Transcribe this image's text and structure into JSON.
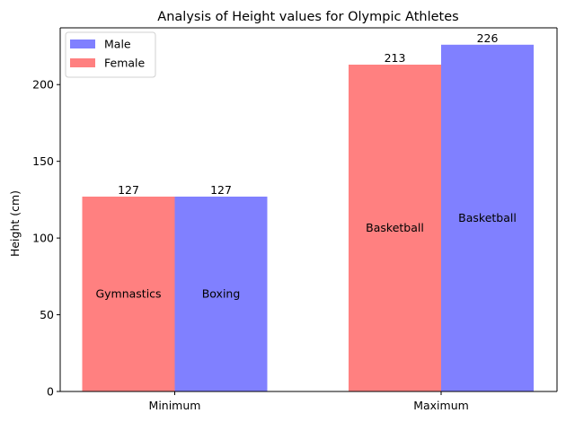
{
  "chart_data": {
    "type": "bar",
    "title": "Analysis of Height values for Olympic Athletes",
    "xlabel": "",
    "ylabel": "Height (cm)",
    "categories": [
      "Minimum",
      "Maximum"
    ],
    "ylim": [
      0,
      237
    ],
    "yticks": [
      0,
      50,
      100,
      150,
      200
    ],
    "grid": false,
    "legend": {
      "placement": "top-left"
    },
    "series": [
      {
        "name": "Female",
        "color": "#ff8080",
        "values": [
          127,
          213
        ],
        "sports": [
          "Gymnastics",
          "Basketball"
        ]
      },
      {
        "name": "Male",
        "color": "#8080ff",
        "values": [
          127,
          226
        ],
        "sports": [
          "Boxing",
          "Basketball"
        ]
      }
    ],
    "legend_order": [
      "Male",
      "Female"
    ]
  }
}
